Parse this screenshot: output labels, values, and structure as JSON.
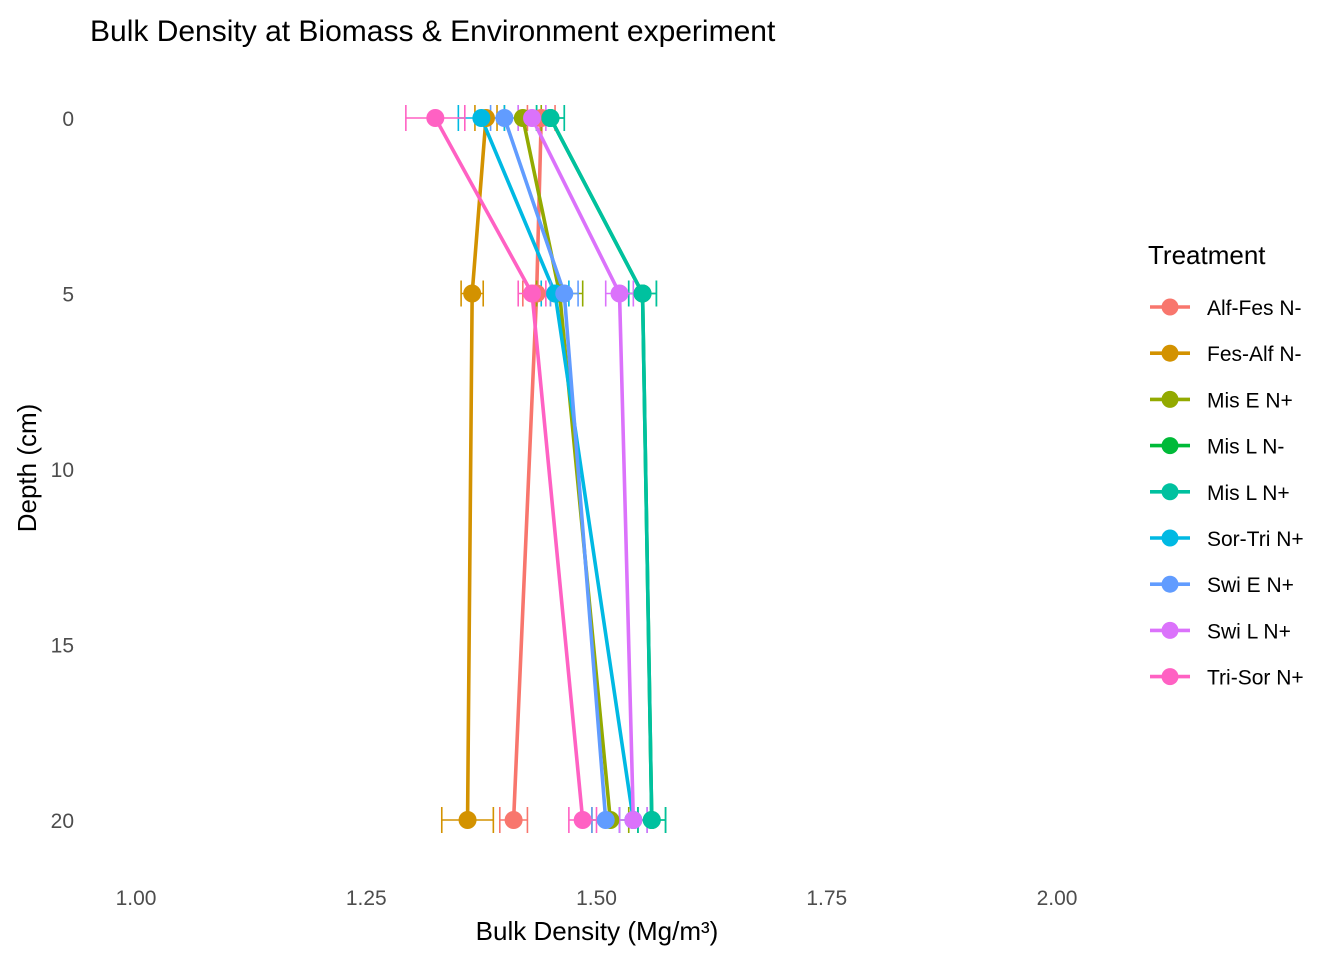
{
  "chart_data": {
    "type": "line",
    "title": "Bulk Density at Biomass & Environment experiment",
    "xlabel": "Bulk Density (Mg/m³)",
    "ylabel": "Depth (cm)",
    "xlim": [
      0.93,
      2.06
    ],
    "ylim": [
      0,
      21.5
    ],
    "y_reversed": true,
    "x_ticks": [
      "1.00",
      "1.25",
      "1.50",
      "1.75",
      "2.00"
    ],
    "x_tick_values": [
      1.0,
      1.25,
      1.5,
      1.75,
      2.0
    ],
    "y_ticks": [
      "0",
      "5",
      "10",
      "15",
      "20"
    ],
    "y_tick_values": [
      0,
      5,
      10,
      15,
      20
    ],
    "grid": false,
    "legend_position": "right",
    "legend_title": "Treatment",
    "depths": [
      0,
      5,
      20
    ],
    "series": [
      {
        "name": "Alf-Fes N-",
        "color": "#F8766D",
        "values": [
          1.44,
          1.435,
          1.41
        ],
        "err": [
          0.015,
          0.015,
          0.015
        ]
      },
      {
        "name": "Fes-Alf N-",
        "color": "#D39200",
        "values": [
          1.38,
          1.365,
          1.36
        ],
        "err": [
          0.012,
          0.012,
          0.028
        ]
      },
      {
        "name": "Mis E N+",
        "color": "#93AA00",
        "values": [
          1.42,
          1.46,
          1.515
        ],
        "err": [
          0.02,
          0.025,
          0.02
        ]
      },
      {
        "name": "Mis L N-",
        "color": "#00BA38",
        "values": [
          1.45,
          1.55,
          1.56
        ],
        "err": [
          0.015,
          0.015,
          0.015
        ]
      },
      {
        "name": "Mis L N+",
        "color": "#00C19F",
        "values": [
          1.45,
          1.55,
          1.56
        ],
        "err": [
          0.015,
          0.015,
          0.015
        ]
      },
      {
        "name": "Sor-Tri N+",
        "color": "#00B9E3",
        "values": [
          1.375,
          1.455,
          1.54
        ],
        "err": [
          0.025,
          0.015,
          0.015
        ]
      },
      {
        "name": "Swi E N+",
        "color": "#619CFF",
        "values": [
          1.4,
          1.465,
          1.51
        ],
        "err": [
          0.015,
          0.015,
          0.015
        ]
      },
      {
        "name": "Swi L N+",
        "color": "#DB72FB",
        "values": [
          1.43,
          1.525,
          1.54
        ],
        "err": [
          0.015,
          0.015,
          0.015
        ]
      },
      {
        "name": "Tri-Sor N+",
        "color": "#FF61C3",
        "values": [
          1.325,
          1.43,
          1.485
        ],
        "err": [
          0.032,
          0.015,
          0.015
        ]
      }
    ]
  }
}
